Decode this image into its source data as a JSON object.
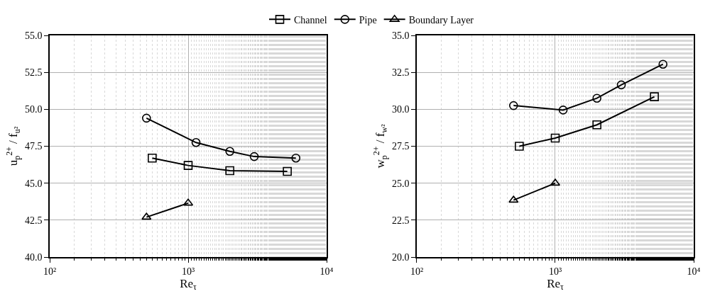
{
  "chart_data": [
    {
      "type": "line",
      "xlabel": "Re$_{τ}$",
      "ylabel": "u$_{p}$$^{2+}$ / f$_{u²}$",
      "log": "x",
      "grid": true,
      "legend": "top",
      "line_style": "solid",
      "xlim": [
        100,
        10000
      ],
      "xticks": [
        {
          "value": 100,
          "label": "10²"
        },
        {
          "value": 1000,
          "label": "10³"
        },
        {
          "value": 10000,
          "label": "10⁴"
        }
      ],
      "ylim": [
        40,
        55
      ],
      "yticks": [
        {
          "value": 40,
          "label": "40.0"
        },
        {
          "value": 42.5,
          "label": "42.5"
        },
        {
          "value": 45,
          "label": "45.0"
        },
        {
          "value": 47.5,
          "label": "47.5"
        },
        {
          "value": 50,
          "label": "50.0"
        },
        {
          "value": 52.5,
          "label": "52.5"
        },
        {
          "value": 55,
          "label": "55.0"
        }
      ],
      "series": [
        {
          "name": "Channel",
          "color": "#000000",
          "marker": "square",
          "x": [
            550,
            1000,
            2000,
            5200
          ],
          "values": [
            46.7,
            46.2,
            45.85,
            45.8
          ]
        },
        {
          "name": "Pipe",
          "color": "#000000",
          "marker": "circle",
          "x": [
            500,
            1140,
            2000,
            3000,
            6000
          ],
          "values": [
            49.4,
            47.75,
            47.15,
            46.8,
            46.7
          ]
        },
        {
          "name": "Boundary Layer",
          "color": "#000000",
          "marker": "triangle",
          "x": [
            500,
            1000
          ],
          "values": [
            42.7,
            43.65
          ]
        }
      ]
    },
    {
      "type": "line",
      "xlabel": "Re$_{τ}$",
      "ylabel": "w$_{p}$$^{2+}$ / f$_{w²}$",
      "log": "x",
      "grid": true,
      "line_style": "solid",
      "xlim": [
        100,
        10000
      ],
      "xticks": [
        {
          "value": 100,
          "label": "10²"
        },
        {
          "value": 1000,
          "label": "10³"
        },
        {
          "value": 10000,
          "label": "10⁴"
        }
      ],
      "ylim": [
        20,
        35
      ],
      "yticks": [
        {
          "value": 20,
          "label": "20.0"
        },
        {
          "value": 22.5,
          "label": "22.5"
        },
        {
          "value": 25,
          "label": "25.0"
        },
        {
          "value": 27.5,
          "label": "27.5"
        },
        {
          "value": 30,
          "label": "30.0"
        },
        {
          "value": 32.5,
          "label": "32.5"
        },
        {
          "value": 35,
          "label": "35.0"
        }
      ],
      "series": [
        {
          "color": "#000000",
          "marker": "square",
          "x": [
            550,
            1000,
            2000,
            5200
          ],
          "values": [
            27.5,
            28.05,
            28.95,
            30.85
          ]
        },
        {
          "color": "#000000",
          "marker": "circle",
          "x": [
            500,
            1140,
            2000,
            3000,
            6000
          ],
          "values": [
            30.25,
            29.95,
            30.75,
            31.65,
            33.05
          ]
        },
        {
          "color": "#000000",
          "marker": "triangle",
          "x": [
            500,
            1000
          ],
          "values": [
            23.85,
            25.0
          ]
        }
      ]
    }
  ]
}
